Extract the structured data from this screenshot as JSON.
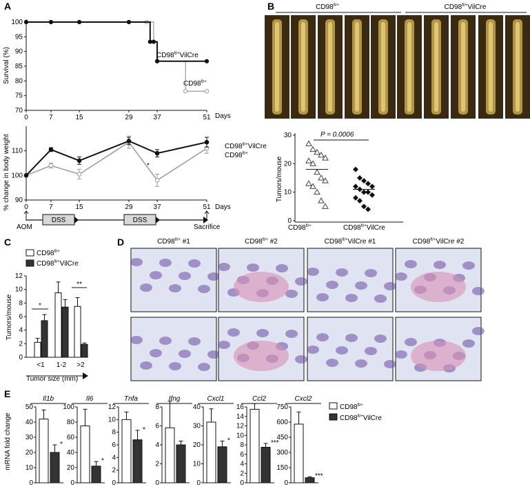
{
  "panels": {
    "A": "A",
    "B": "B",
    "C": "C",
    "D": "D",
    "E": "E"
  },
  "geno": {
    "flox": "CD98",
    "flox_sup": "fl/+",
    "cre": "CD98",
    "cre_sup": "fl/+",
    "cre_suffix": "VilCre"
  },
  "panelA": {
    "survival": {
      "ylabel": "Survival (%)",
      "xlabel": "Days",
      "xticks": [
        "0",
        "7",
        "15",
        "29",
        "37",
        "51"
      ],
      "yticks": [
        "70",
        "75",
        "80",
        "85",
        "90",
        "95",
        "100"
      ]
    },
    "weight": {
      "ylabel": "% change in body weight",
      "xlabel": "Days",
      "xticks": [
        "0",
        "7",
        "15",
        "29",
        "37",
        "51"
      ],
      "yticks": [
        "90",
        "100",
        "110"
      ],
      "star": "*"
    },
    "timeline": {
      "aom": "AOM",
      "dss1": "DSS",
      "dss2": "DSS",
      "sacrifice": "Sacrifice"
    }
  },
  "panelB": {
    "header_left": "CD98",
    "header_left_sup": "fl/+",
    "header_right": "CD98",
    "header_right_sup": "fl/+",
    "header_right_suffix": "VilCre",
    "pvalue": "P = 0.0006",
    "ylabel": "Tumors/mouse",
    "yticks": [
      "0",
      "10",
      "20",
      "30"
    ],
    "x_left": "CD98",
    "x_left_sup": "fl/+",
    "x_right": "CD98",
    "x_right_sup": "fl/+",
    "x_right_suffix": "VilCre"
  },
  "panelC": {
    "ylabel": "Tumors/mouse",
    "xlabel": "Tumor size (mm)",
    "yticks": [
      "0",
      "2",
      "4",
      "6",
      "8",
      "10",
      "12"
    ],
    "categories": [
      "<1",
      "1-2",
      ">2"
    ],
    "sig": [
      "*",
      "**"
    ]
  },
  "panelD": {
    "titles": [
      {
        "base": "CD98",
        "sup": "fl/+",
        "suffix": " #1"
      },
      {
        "base": "CD98",
        "sup": "fl/+",
        "suffix": " #2"
      },
      {
        "base": "CD98",
        "sup": "fl/+",
        "suffix": "VilCre #1"
      },
      {
        "base": "CD98",
        "sup": "fl/+",
        "suffix": "VilCre #2"
      }
    ]
  },
  "panelE": {
    "ylabel": "mRNA fold change",
    "legend_flox": "CD98",
    "legend_flox_sup": "fl/+",
    "legend_cre": "CD98",
    "legend_cre_sup": "fl/+",
    "legend_cre_suffix": "VilCre"
  },
  "colors": {
    "black": "#111111",
    "gray": "#9a9a9a",
    "dss_box": "#d8d8d8",
    "tissue_pink": "#d98fb4",
    "tissue_purple": "#6a4fa0",
    "bg_blue": "#dfe3f2",
    "colon_bg": "#3a2a12",
    "colon_gold": "#caa84a"
  },
  "chart_data": [
    {
      "type": "line",
      "title": "",
      "xlabel": "Days",
      "ylabel": "Survival (%)",
      "ylim": [
        70,
        100
      ],
      "series": [
        {
          "name": "CD98fl/+VilCre",
          "x": [
            0,
            7,
            15,
            29,
            35,
            36,
            37,
            51
          ],
          "values": [
            100,
            100,
            100,
            100,
            93.3,
            93.3,
            86.7,
            86.7
          ]
        },
        {
          "name": "CD98fl/+",
          "x": [
            0,
            7,
            15,
            29,
            34,
            36,
            37,
            45,
            51
          ],
          "values": [
            100,
            100,
            100,
            100,
            100,
            93.3,
            86.7,
            76.5,
            76.5
          ]
        }
      ]
    },
    {
      "type": "line",
      "title": "",
      "xlabel": "Days",
      "ylabel": "% change in body weight",
      "ylim": [
        90,
        120
      ],
      "series": [
        {
          "name": "CD98fl/+VilCre",
          "x": [
            0,
            7,
            15,
            29,
            37,
            51
          ],
          "values": [
            100,
            110.5,
            106,
            114,
            109,
            113.5
          ],
          "err": [
            0,
            0.8,
            1.5,
            1.5,
            1.5,
            2
          ]
        },
        {
          "name": "CD98fl/+",
          "x": [
            0,
            7,
            15,
            29,
            37,
            51
          ],
          "values": [
            100,
            104,
            100.5,
            113.5,
            98,
            111
          ],
          "err": [
            0,
            1,
            2,
            2.5,
            2.5,
            2
          ]
        }
      ]
    },
    {
      "type": "scatter",
      "title": "",
      "ylabel": "Tumors/mouse",
      "ylim": [
        0,
        30
      ],
      "categories": [
        "CD98fl/+",
        "CD98fl/+VilCre"
      ],
      "series": [
        {
          "name": "CD98fl/+",
          "values": [
            27,
            25,
            24,
            23,
            22,
            21,
            20,
            17,
            15,
            14,
            13,
            12,
            10,
            7,
            5
          ],
          "mean": 18
        },
        {
          "name": "CD98fl/+VilCre",
          "values": [
            18,
            15,
            14,
            13,
            12,
            12,
            11,
            10,
            10,
            9,
            8,
            7,
            5,
            4
          ],
          "mean": 11
        }
      ]
    },
    {
      "type": "bar",
      "title": "",
      "xlabel": "Tumor size (mm)",
      "ylabel": "Tumors/mouse",
      "ylim": [
        0,
        12
      ],
      "categories": [
        "<1",
        "1-2",
        ">2"
      ],
      "series": [
        {
          "name": "CD98fl/+",
          "values": [
            2.2,
            9.5,
            7.5
          ],
          "err": [
            0.6,
            1.6,
            1.3
          ]
        },
        {
          "name": "CD98fl/+VilCre",
          "values": [
            5.4,
            7.4,
            1.9
          ],
          "err": [
            0.9,
            1.1,
            0.2
          ]
        }
      ]
    },
    {
      "type": "bar",
      "title": "",
      "ylabel": "mRNA fold change",
      "categories": [
        "Il1b",
        "Il6",
        "Tnfa",
        "Ifng",
        "Cxcl1",
        "Ccl2",
        "Cxcl2"
      ],
      "subplots": [
        {
          "gene": "Il1b",
          "yticks": [
            "0",
            "10",
            "20",
            "30",
            "40",
            "50"
          ],
          "ylim": [
            0,
            50
          ],
          "values": [
            42,
            20
          ],
          "err": [
            6,
            5
          ],
          "sig": "*"
        },
        {
          "gene": "Il6",
          "yticks": [
            "0",
            "20",
            "40",
            "60",
            "80",
            "100"
          ],
          "ylim": [
            0,
            100
          ],
          "values": [
            75,
            22
          ],
          "err": [
            22,
            6
          ],
          "sig": "*"
        },
        {
          "gene": "Tnfa",
          "yticks": [
            "0",
            "2",
            "4",
            "6",
            "8",
            "10",
            "12"
          ],
          "ylim": [
            0,
            12
          ],
          "values": [
            10,
            6.8
          ],
          "err": [
            1.2,
            1.5
          ],
          "sig": "*"
        },
        {
          "gene": "Ifng",
          "yticks": [
            "0",
            "2",
            "4",
            "6",
            "8"
          ],
          "ylim": [
            0,
            8
          ],
          "values": [
            5.8,
            4
          ],
          "err": [
            2.8,
            0.4
          ],
          "sig": ""
        },
        {
          "gene": "Cxcl1",
          "yticks": [
            "0",
            "10",
            "20",
            "30",
            "40"
          ],
          "ylim": [
            0,
            40
          ],
          "values": [
            32,
            19
          ],
          "err": [
            7,
            3
          ],
          "sig": "*"
        },
        {
          "gene": "Ccl2",
          "yticks": [
            "0",
            "2",
            "4",
            "6",
            "8",
            "10",
            "12",
            "14",
            "16"
          ],
          "ylim": [
            0,
            16
          ],
          "values": [
            15.5,
            7.5
          ],
          "err": [
            1.2,
            0.8
          ],
          "sig": "***"
        },
        {
          "gene": "Cxcl2",
          "yticks": [
            "0",
            "150",
            "300",
            "450",
            "600",
            "750"
          ],
          "ylim": [
            0,
            750
          ],
          "values": [
            580,
            50
          ],
          "err": [
            120,
            10
          ],
          "sig": "***"
        }
      ],
      "series": [
        {
          "name": "CD98fl/+"
        },
        {
          "name": "CD98fl/+VilCre"
        }
      ]
    }
  ]
}
